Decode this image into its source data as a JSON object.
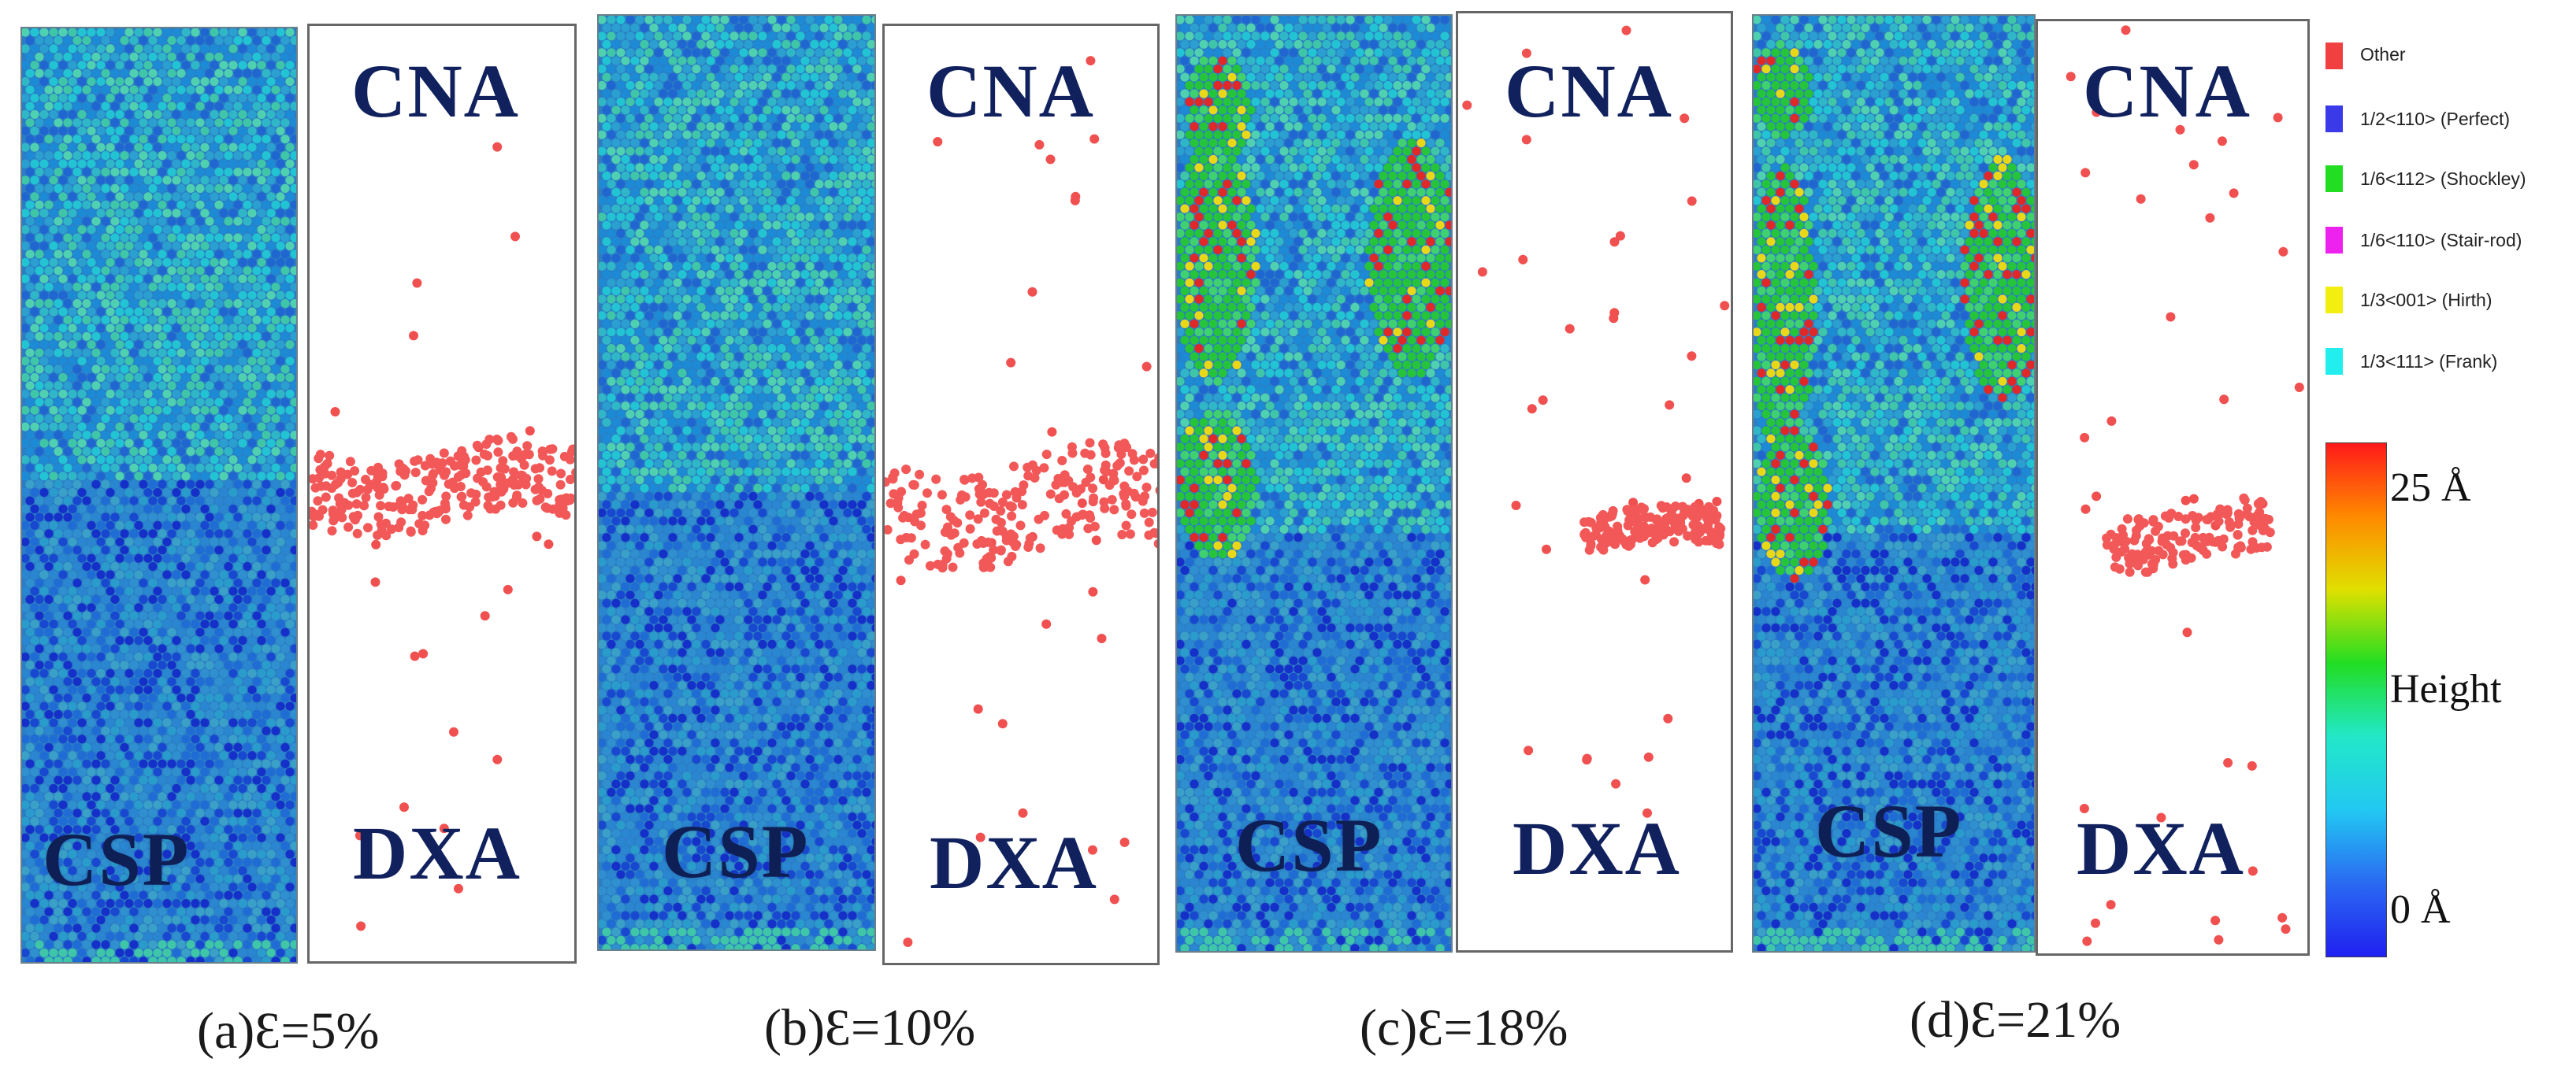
{
  "panels": [
    {
      "id": "a",
      "caption": "(a)Ɛ=5%",
      "csp_label": "CSP",
      "dxa_label": "DXA",
      "cna_label": "CNA"
    },
    {
      "id": "b",
      "caption": "(b)Ɛ=10%",
      "csp_label": "CSP",
      "dxa_label": "DXA",
      "cna_label": "CNA"
    },
    {
      "id": "c",
      "caption": "(c)Ɛ=18%",
      "csp_label": "CSP",
      "dxa_label": "DXA",
      "cna_label": "CNA"
    },
    {
      "id": "d",
      "caption": "(d)Ɛ=21%",
      "csp_label": "CSP",
      "dxa_label": "DXA",
      "cna_label": "CNA"
    }
  ],
  "legend": {
    "items": [
      {
        "label": "Other",
        "color": "#f04040"
      },
      {
        "label": "1/2<110> (Perfect)",
        "color": "#3a3ae8"
      },
      {
        "label": "1/6<112> (Shockley)",
        "color": "#22dd22"
      },
      {
        "label": "1/6<110> (Stair-rod)",
        "color": "#ee22ee"
      },
      {
        "label": "1/3<001> (Hirth)",
        "color": "#f2ee10"
      },
      {
        "label": "1/3<111> (Frank)",
        "color": "#22eeee"
      }
    ],
    "colorbar": {
      "max_label": "25 Å",
      "mid_label": "Height",
      "min_label": "0 Å",
      "colors": [
        "#ff1a1a",
        "#ff8a00",
        "#e0e000",
        "#22dd22",
        "#22e8c8",
        "#22c8f2",
        "#2a6af2",
        "#2020f0"
      ]
    }
  }
}
